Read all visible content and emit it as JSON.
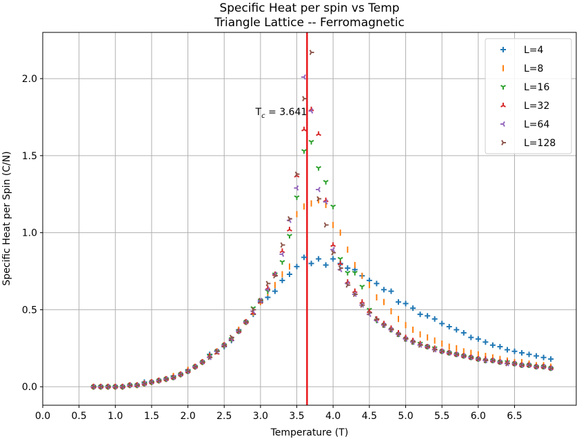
{
  "chart_data": {
    "type": "scatter",
    "title": "Specific Heat per spin vs Temp",
    "subtitle": "Triangle Lattice -- Ferromagnetic",
    "xlabel": "Temperature (T)",
    "ylabel": "Specific Heat per Spin (C/N)",
    "xlim": [
      0.0,
      7.35
    ],
    "ylim": [
      -0.12,
      2.3
    ],
    "xticks": [
      "0.0",
      "0.5",
      "1.0",
      "1.5",
      "2.0",
      "2.5",
      "3.0",
      "3.5",
      "4.0",
      "4.5",
      "5.0",
      "5.5",
      "6.0",
      "6.5"
    ],
    "yticks": [
      "0.0",
      "0.5",
      "1.0",
      "1.5",
      "2.0"
    ],
    "grid": true,
    "legend_position": "top-right",
    "critical_line": {
      "x": 3.641,
      "label_prefix": "T",
      "label_sub": "c",
      "label_suffix": " = 3.641",
      "color": "#e8161c"
    },
    "x": [
      0.7,
      0.8,
      0.9,
      1.0,
      1.1,
      1.2,
      1.3,
      1.4,
      1.5,
      1.6,
      1.7,
      1.8,
      1.9,
      2.0,
      2.1,
      2.2,
      2.3,
      2.4,
      2.5,
      2.6,
      2.7,
      2.8,
      2.9,
      3.0,
      3.1,
      3.2,
      3.3,
      3.4,
      3.5,
      3.6,
      3.7,
      3.8,
      3.9,
      4.0,
      4.1,
      4.2,
      4.3,
      4.4,
      4.5,
      4.6,
      4.7,
      4.8,
      4.9,
      5.0,
      5.1,
      5.2,
      5.3,
      5.4,
      5.5,
      5.6,
      5.7,
      5.8,
      5.9,
      6.0,
      6.1,
      6.2,
      6.3,
      6.4,
      6.5,
      6.6,
      6.7,
      6.8,
      6.9,
      7.0
    ],
    "series": [
      {
        "name": "L=4",
        "marker": "plus",
        "color": "#1f77b4",
        "values": [
          0.0,
          0.0,
          0.0,
          0.0,
          0.0,
          0.01,
          0.01,
          0.03,
          0.03,
          0.04,
          0.05,
          0.07,
          0.08,
          0.11,
          0.13,
          0.16,
          0.21,
          0.23,
          0.26,
          0.3,
          0.37,
          0.42,
          0.47,
          0.55,
          0.58,
          0.62,
          0.69,
          0.73,
          0.78,
          0.84,
          0.8,
          0.83,
          0.79,
          0.83,
          0.8,
          0.77,
          0.76,
          0.72,
          0.69,
          0.67,
          0.63,
          0.62,
          0.55,
          0.54,
          0.51,
          0.47,
          0.46,
          0.44,
          0.41,
          0.39,
          0.37,
          0.35,
          0.32,
          0.31,
          0.29,
          0.27,
          0.26,
          0.24,
          0.23,
          0.22,
          0.21,
          0.2,
          0.19,
          0.18
        ]
      },
      {
        "name": "L=8",
        "marker": "vline",
        "color": "#ff7f0e",
        "values": [
          0.0,
          0.0,
          0.0,
          0.0,
          0.0,
          0.01,
          0.01,
          0.02,
          0.03,
          0.04,
          0.05,
          0.07,
          0.08,
          0.11,
          0.13,
          0.16,
          0.2,
          0.23,
          0.27,
          0.31,
          0.37,
          0.42,
          0.48,
          0.55,
          0.61,
          0.66,
          0.73,
          0.78,
          1.12,
          1.17,
          1.19,
          1.21,
          1.18,
          1.05,
          1.0,
          0.89,
          0.79,
          0.72,
          0.66,
          0.58,
          0.55,
          0.49,
          0.44,
          0.4,
          0.37,
          0.34,
          0.32,
          0.3,
          0.28,
          0.26,
          0.25,
          0.23,
          0.22,
          0.21,
          0.2,
          0.19,
          0.18,
          0.17,
          0.16,
          0.16,
          0.15,
          0.14,
          0.14,
          0.13
        ]
      },
      {
        "name": "L=16",
        "marker": "tri_down",
        "color": "#2ca02c",
        "values": [
          0.0,
          0.0,
          0.0,
          0.0,
          0.0,
          0.01,
          0.01,
          0.02,
          0.03,
          0.04,
          0.05,
          0.06,
          0.08,
          0.1,
          0.13,
          0.16,
          0.2,
          0.23,
          0.27,
          0.31,
          0.36,
          0.42,
          0.51,
          0.56,
          0.62,
          0.73,
          0.81,
          0.98,
          1.23,
          1.53,
          1.59,
          1.42,
          1.33,
          1.17,
          0.83,
          0.74,
          0.74,
          0.65,
          0.5,
          0.43,
          0.4,
          0.37,
          0.34,
          0.31,
          0.29,
          0.28,
          0.26,
          0.25,
          0.23,
          0.22,
          0.21,
          0.2,
          0.19,
          0.18,
          0.17,
          0.17,
          0.16,
          0.16,
          0.15,
          0.14,
          0.14,
          0.13,
          0.13,
          0.12
        ]
      },
      {
        "name": "L=32",
        "marker": "tri_up",
        "color": "#d62728",
        "values": [
          0.0,
          0.0,
          0.0,
          0.0,
          0.0,
          0.01,
          0.01,
          0.02,
          0.03,
          0.04,
          0.05,
          0.06,
          0.08,
          0.1,
          0.13,
          0.16,
          0.2,
          0.22,
          0.27,
          0.31,
          0.36,
          0.42,
          0.48,
          0.55,
          0.64,
          0.73,
          0.88,
          1.02,
          1.37,
          1.67,
          1.8,
          1.64,
          1.21,
          0.92,
          0.8,
          0.68,
          0.62,
          0.55,
          0.49,
          0.44,
          0.41,
          0.38,
          0.35,
          0.32,
          0.3,
          0.28,
          0.26,
          0.25,
          0.23,
          0.22,
          0.21,
          0.2,
          0.19,
          0.18,
          0.18,
          0.17,
          0.16,
          0.16,
          0.15,
          0.14,
          0.14,
          0.13,
          0.13,
          0.12
        ]
      },
      {
        "name": "L=64",
        "marker": "tri_left",
        "color": "#9467bd",
        "values": [
          0.0,
          0.0,
          0.0,
          0.0,
          0.0,
          0.01,
          0.01,
          0.02,
          0.03,
          0.04,
          0.05,
          0.06,
          0.08,
          0.1,
          0.13,
          0.16,
          0.19,
          0.23,
          0.27,
          0.31,
          0.36,
          0.42,
          0.49,
          0.56,
          0.63,
          0.73,
          0.86,
          1.08,
          1.29,
          2.01,
          1.79,
          1.28,
          1.2,
          0.89,
          0.76,
          0.67,
          0.6,
          0.53,
          0.47,
          0.43,
          0.4,
          0.37,
          0.34,
          0.31,
          0.29,
          0.27,
          0.26,
          0.24,
          0.23,
          0.22,
          0.21,
          0.2,
          0.19,
          0.18,
          0.17,
          0.17,
          0.16,
          0.15,
          0.15,
          0.14,
          0.14,
          0.13,
          0.13,
          0.12
        ]
      },
      {
        "name": "L=128",
        "marker": "tri_right",
        "color": "#8c564b",
        "values": [
          0.0,
          0.0,
          0.0,
          0.0,
          0.0,
          0.01,
          0.01,
          0.02,
          0.03,
          0.04,
          0.05,
          0.06,
          0.08,
          0.1,
          0.13,
          0.16,
          0.19,
          0.23,
          0.27,
          0.32,
          0.36,
          0.42,
          0.5,
          0.56,
          0.67,
          0.72,
          0.92,
          1.09,
          1.38,
          1.87,
          2.17,
          1.22,
          1.05,
          0.87,
          0.77,
          0.66,
          0.6,
          0.53,
          0.48,
          0.44,
          0.4,
          0.37,
          0.34,
          0.31,
          0.29,
          0.27,
          0.26,
          0.24,
          0.23,
          0.22,
          0.21,
          0.2,
          0.19,
          0.18,
          0.17,
          0.17,
          0.16,
          0.15,
          0.15,
          0.14,
          0.14,
          0.13,
          0.13,
          0.12
        ]
      }
    ]
  }
}
